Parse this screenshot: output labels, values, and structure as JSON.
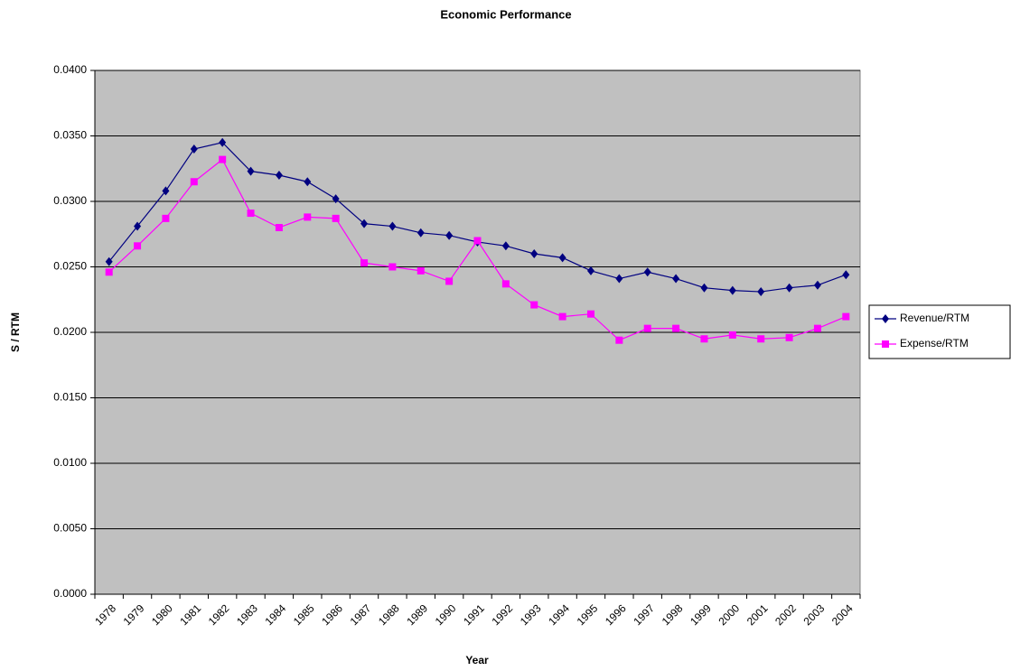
{
  "chart_data": {
    "type": "line",
    "title": "Economic Performance",
    "x_label": "Year",
    "y_label": "S / RTM",
    "categories": [
      "1978",
      "1979",
      "1980",
      "1981",
      "1982",
      "1983",
      "1984",
      "1985",
      "1986",
      "1987",
      "1988",
      "1989",
      "1990",
      "1991",
      "1992",
      "1993",
      "1994",
      "1995",
      "1996",
      "1997",
      "1998",
      "1999",
      "2000",
      "2001",
      "2002",
      "2003",
      "2004"
    ],
    "series": [
      {
        "name": "Revenue/RTM",
        "color": "#000080",
        "marker": "diamond",
        "values": [
          0.0254,
          0.0281,
          0.0308,
          0.034,
          0.0345,
          0.0323,
          0.032,
          0.0315,
          0.0302,
          0.0283,
          0.0281,
          0.0276,
          0.0274,
          0.0269,
          0.0266,
          0.026,
          0.0257,
          0.0247,
          0.0241,
          0.0246,
          0.0241,
          0.0234,
          0.0232,
          0.0231,
          0.0234,
          0.0236,
          0.0244
        ]
      },
      {
        "name": "Expense/RTM",
        "color": "#ff00ff",
        "marker": "square",
        "values": [
          0.0246,
          0.0266,
          0.0287,
          0.0315,
          0.0332,
          0.0291,
          0.028,
          0.0288,
          0.0287,
          0.0253,
          0.025,
          0.0247,
          0.0239,
          0.027,
          0.0237,
          0.0221,
          0.0212,
          0.0214,
          0.0194,
          0.0203,
          0.0203,
          0.0195,
          0.0198,
          0.0195,
          0.0196,
          0.0203,
          0.0212
        ]
      }
    ],
    "ylim": [
      0,
      0.04
    ],
    "yticks": [
      {
        "value": 0,
        "label": "0.0000"
      },
      {
        "value": 0.005,
        "label": "0.0050"
      },
      {
        "value": 0.01,
        "label": "0.0100"
      },
      {
        "value": 0.015,
        "label": "0.0150"
      },
      {
        "value": 0.02,
        "label": "0.0200"
      },
      {
        "value": 0.025,
        "label": "0.0250"
      },
      {
        "value": 0.03,
        "label": "0.0300"
      },
      {
        "value": 0.035,
        "label": "0.0350"
      },
      {
        "value": 0.04,
        "label": "0.0400"
      }
    ],
    "grid": true,
    "legend": "right"
  }
}
